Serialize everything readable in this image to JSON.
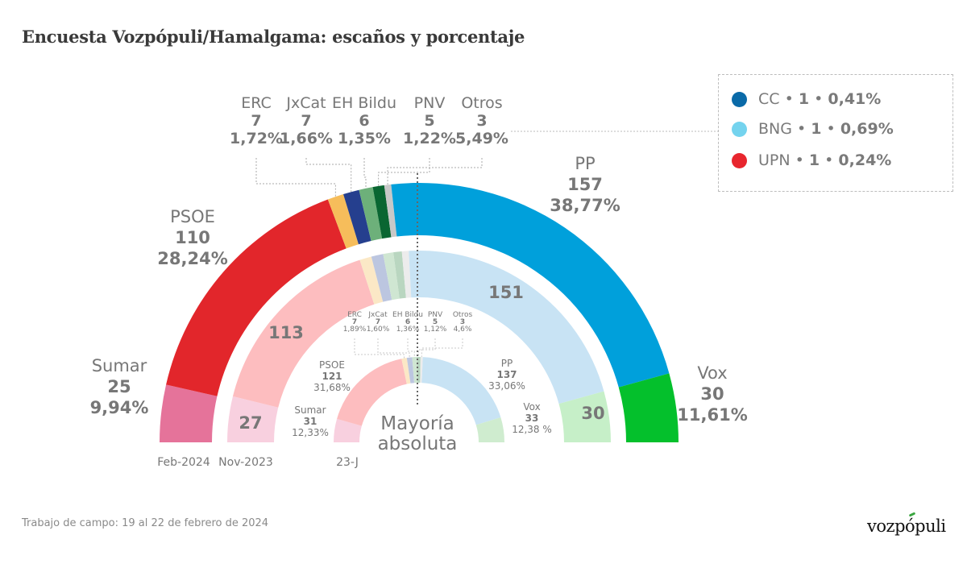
{
  "title": "Encuesta Vozpópuli/Hamalgama: escaños y porcentaje",
  "footer": "Trabajo de campo: 19 al 22 de febrero de 2024",
  "brand": "vozpópuli",
  "center_label": [
    "Mayoría",
    "absoluta"
  ],
  "legend": [
    {
      "party": "CC",
      "seats": "1",
      "pct": "0,41%",
      "color": "#0a6aa8"
    },
    {
      "party": "BNG",
      "seats": "1",
      "pct": "0,69%",
      "color": "#74d3ee"
    },
    {
      "party": "UPN",
      "seats": "1",
      "pct": "0,24%",
      "color": "#e8262e"
    }
  ],
  "chart_data": {
    "type": "pie",
    "subtype": "hemicycle-rings",
    "title": "Encuesta Vozpópuli/Hamalgama: escaños y porcentaje",
    "total_seats": 350,
    "majority_label": "Mayoría absoluta",
    "rings": [
      {
        "name": "Feb-2024",
        "label": "Feb-2024",
        "segments": [
          {
            "party": "Sumar",
            "seats": 25,
            "pct": "9,94%",
            "color": "#e5739a"
          },
          {
            "party": "PSOE",
            "seats": 110,
            "pct": "28,24%",
            "color": "#e2262b"
          },
          {
            "party": "ERC",
            "seats": 7,
            "pct": "1,72%",
            "color": "#f6bd5b"
          },
          {
            "party": "JxCat",
            "seats": 7,
            "pct": "1,66%",
            "color": "#253f8e"
          },
          {
            "party": "EH Bildu",
            "seats": 6,
            "pct": "1,35%",
            "color": "#6db07a"
          },
          {
            "party": "PNV",
            "seats": 5,
            "pct": "1,22%",
            "color": "#0a6632"
          },
          {
            "party": "Otros",
            "seats": 3,
            "pct": "5,49%",
            "color": "#c8c8c8"
          },
          {
            "party": "PP",
            "seats": 157,
            "pct": "38,77%",
            "color": "#00a0db"
          },
          {
            "party": "Vox",
            "seats": 30,
            "pct": "11,61%",
            "color": "#04c02c"
          }
        ]
      },
      {
        "name": "Nov-2023",
        "label": "Nov-2023",
        "segments": [
          {
            "party": "Sumar",
            "seats": 27,
            "label": "27",
            "color": "#f8d0df"
          },
          {
            "party": "PSOE",
            "seats": 113,
            "label": "113",
            "color": "#fdbdbf"
          },
          {
            "party": "ERC",
            "seats": 7,
            "color": "#fbe8c6"
          },
          {
            "party": "JxCat",
            "seats": 7,
            "color": "#bcc6e0"
          },
          {
            "party": "EH Bildu",
            "seats": 6,
            "color": "#cfe6d2"
          },
          {
            "party": "PNV",
            "seats": 5,
            "color": "#b9d6c0"
          },
          {
            "party": "Otros",
            "seats": 4,
            "color": "#ececec"
          },
          {
            "party": "PP",
            "seats": 151,
            "label": "151",
            "color": "#c8e3f4"
          },
          {
            "party": "Vox",
            "seats": 30,
            "label": "30",
            "color": "#c6efc8"
          }
        ]
      },
      {
        "name": "23-J",
        "label": "23-J",
        "segments": [
          {
            "party": "Sumar",
            "seats": 31,
            "pct": "12,33%",
            "color": "#f8d0df"
          },
          {
            "party": "PSOE",
            "seats": 121,
            "pct": "31,68%",
            "color": "#fdbdbf"
          },
          {
            "party": "ERC",
            "seats": 7,
            "pct": "1,89%",
            "color": "#fbe8c6"
          },
          {
            "party": "JxCat",
            "seats": 7,
            "pct": "1,60%",
            "color": "#bcc6e0"
          },
          {
            "party": "EH Bildu",
            "seats": 6,
            "pct": "1,36%",
            "color": "#cfe6d2"
          },
          {
            "party": "PNV",
            "seats": 5,
            "pct": "1,12%",
            "color": "#b9d6c0"
          },
          {
            "party": "Otros",
            "seats": 3,
            "pct": "4,6%",
            "color": "#ececec"
          },
          {
            "party": "PP",
            "seats": 137,
            "pct": "33,06%",
            "color": "#c8e3f4"
          },
          {
            "party": "Vox",
            "seats": 33,
            "pct": "12,38 %",
            "color": "#cfeccf"
          }
        ]
      }
    ]
  }
}
